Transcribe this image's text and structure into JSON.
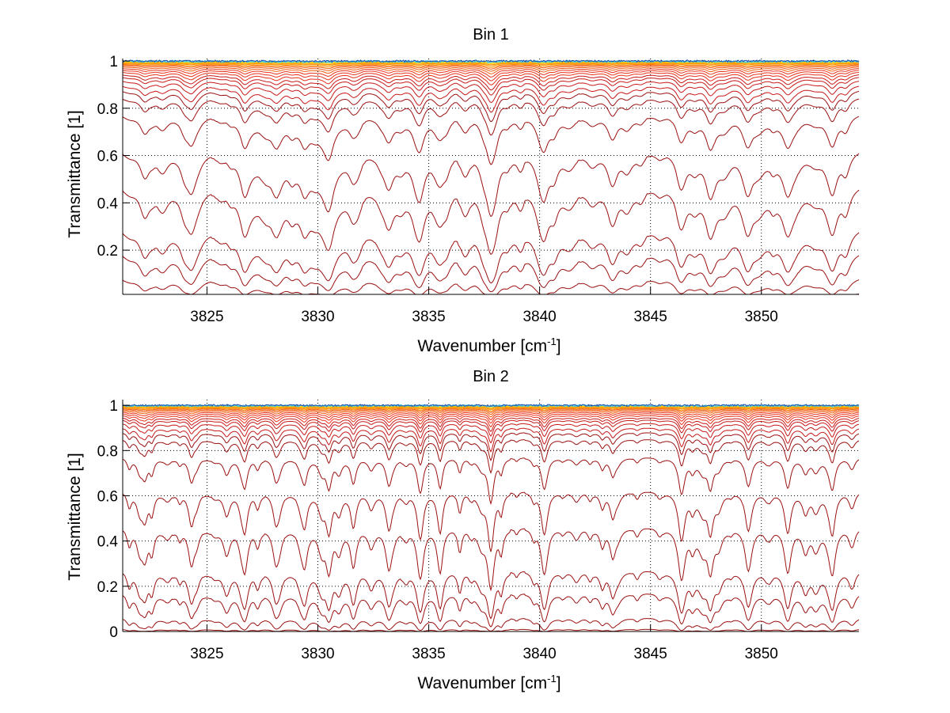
{
  "chart_data": [
    {
      "type": "line",
      "title": "Bin 1",
      "xlabel": "Wavenumber [cm",
      "xlabel_superscript": "-1",
      "xlabel_suffix": "]",
      "ylabel": "Transmittance [1]",
      "xlim": [
        3821.2,
        3854.4
      ],
      "ylim": [
        0.013,
        1.01
      ],
      "xticks": [
        3825,
        3830,
        3835,
        3840,
        3845,
        3850
      ],
      "yticks": [
        0.2,
        0.4,
        0.6,
        0.8,
        1
      ],
      "ytick_labels": [
        "0.2",
        "0.4",
        "0.6",
        "0.8",
        "1"
      ],
      "grid": true,
      "series_description": "Family of ~30 transmittance spectra from near-opaque (~0.02) to near-transparent (~1.0); colored by transmittance level (dark red low, orange/yellow/cyan/blue near 1)",
      "series_baselines": [
        0.02,
        0.09,
        0.2,
        0.3,
        0.48,
        0.63,
        0.78,
        0.85,
        0.88,
        0.9,
        0.92,
        0.935,
        0.945,
        0.955,
        0.963,
        0.97,
        0.976,
        0.981,
        0.985,
        0.988,
        0.991,
        0.993,
        0.995,
        0.997,
        0.998,
        0.999,
        1.0
      ],
      "deep_absorption_at": 3837.8,
      "deep_absorption_min": 0.27
    },
    {
      "type": "line",
      "title": "Bin 2",
      "xlabel": "Wavenumber [cm",
      "xlabel_superscript": "-1",
      "xlabel_suffix": "]",
      "ylabel": "Transmittance [1]",
      "xlim": [
        3821.2,
        3854.4
      ],
      "ylim": [
        0.0,
        1.025
      ],
      "xticks": [
        3825,
        3830,
        3835,
        3840,
        3845,
        3850
      ],
      "yticks": [
        0,
        0.2,
        0.4,
        0.6,
        0.8,
        1
      ],
      "ytick_labels": [
        "0",
        "0.2",
        "0.4",
        "0.6",
        "0.8",
        "1"
      ],
      "grid": true,
      "series_description": "Family of ~30 transmittance spectra with sharper absorption lines; same color scheme as Bin 1",
      "series_baselines": [
        0.01,
        0.06,
        0.17,
        0.27,
        0.46,
        0.62,
        0.77,
        0.85,
        0.88,
        0.9,
        0.92,
        0.935,
        0.945,
        0.955,
        0.963,
        0.97,
        0.976,
        0.981,
        0.985,
        0.988,
        0.991,
        0.993,
        0.995,
        0.997,
        0.998,
        0.999,
        1.0
      ],
      "deep_absorption_at": 3837.8,
      "deep_absorption_min": 0.28
    }
  ],
  "colors": {
    "low": "#8b0000",
    "mid": "#e02010",
    "high": "#ff8c00",
    "near_one_1": "#ffd000",
    "near_one_2": "#40c0e0",
    "near_one_3": "#0030a0",
    "grid": "#000000"
  }
}
